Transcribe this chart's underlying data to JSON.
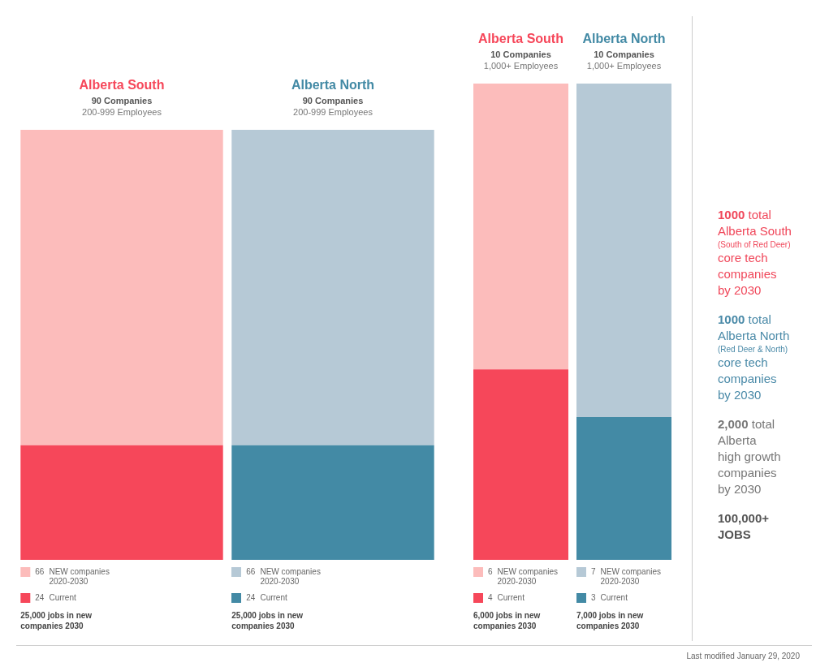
{
  "chart_data": [
    {
      "type": "bar",
      "stacked": true,
      "data_labels": true,
      "tick_labels": "x",
      "legend": "bottom",
      "categories": [
        "Alberta South",
        "Alberta North"
      ],
      "series": [
        {
          "name": "Current",
          "colors": [
            "#f6475a",
            "#438aa5"
          ],
          "values": [
            24,
            24
          ]
        },
        {
          "name": "NEW companies 2020-2030",
          "colors": [
            "#fcbcbb",
            "#b6c9d6"
          ],
          "values": [
            66,
            66
          ]
        }
      ],
      "annotations": [
        "90 Companies",
        "200-999 Employees",
        "25,000 jobs in new companies 2030",
        "90 Companies",
        "200-999 Employees",
        "25,000 jobs in new companies 2030"
      ]
    },
    {
      "type": "bar",
      "stacked": true,
      "data_labels": true,
      "tick_labels": "x",
      "legend": "bottom",
      "categories": [
        "Alberta South",
        "Alberta North"
      ],
      "series": [
        {
          "name": "Current",
          "colors": [
            "#f6475a",
            "#438aa5"
          ],
          "values": [
            4,
            3
          ]
        },
        {
          "name": "NEW companies 2020-2030",
          "colors": [
            "#fcbcbb",
            "#b6c9d6"
          ],
          "values": [
            6,
            7
          ]
        }
      ],
      "annotations": [
        "10 Companies",
        "1,000+ Employees",
        "6,000 jobs in new companies 2030",
        "10 Companies",
        "1,000+ Employees",
        "7,000 jobs in new companies 2030"
      ]
    },
    {
      "type": "other",
      "annotations": [
        "1000 total",
        "Alberta South",
        "(South of Red Deer)",
        "core tech",
        "companies",
        "by 2030",
        "1000 total",
        "Alberta North",
        "(Red Deer & North)",
        "core tech",
        "companies",
        "by 2030",
        "2,000 total",
        "Alberta",
        "high growth",
        "companies",
        "by 2030",
        "100,000+",
        "JOBS",
        "Last modified January 29, 2020"
      ]
    }
  ]
}
